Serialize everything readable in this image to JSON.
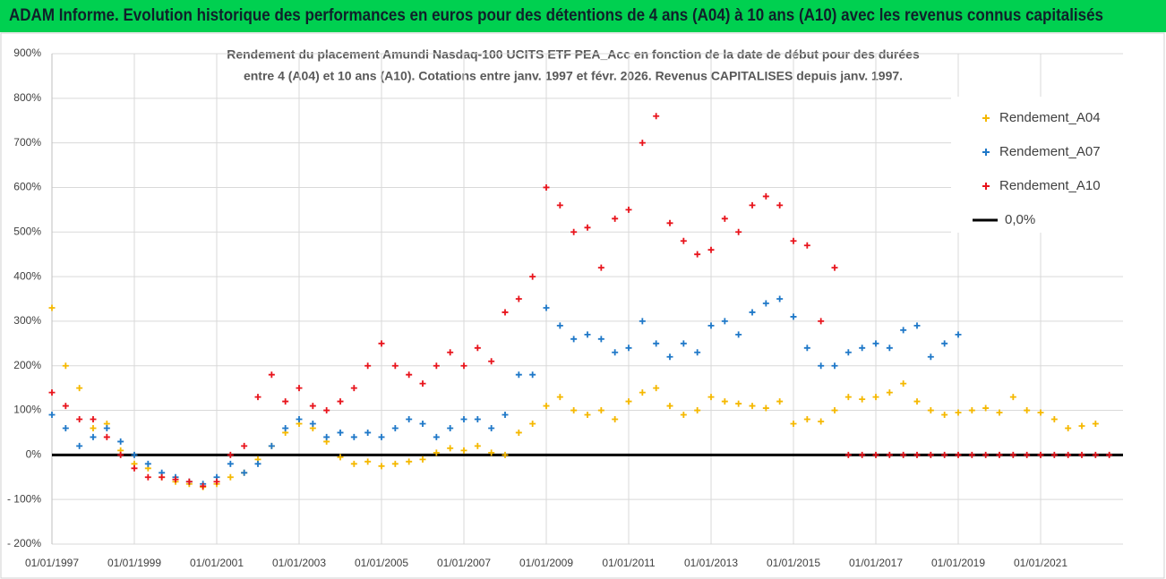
{
  "header": {
    "title": "ADAM Informe. Evolution historique des performances en euros pour des détentions de 4 ans (A04) à 10 ans (A10) avec les revenus connus capitalisés"
  },
  "chart_data": {
    "type": "scatter",
    "subtitle": [
      "Rendement du placement Amundi Nasdaq-100 UCITS ETF PEA_Acc en fonction de la date de début pour des durées",
      "entre 4 (A04) et 10 ans (A10). Cotations entre janv. 1997 et févr. 2026. Revenus CAPITALISES depuis janv. 1997."
    ],
    "x": [
      "01/01/1997",
      "01/05/1997",
      "01/09/1997",
      "01/01/1998",
      "01/05/1998",
      "01/09/1998",
      "01/01/1999",
      "01/05/1999",
      "01/09/1999",
      "01/01/2000",
      "01/05/2000",
      "01/09/2000",
      "01/01/2001",
      "01/05/2001",
      "01/09/2001",
      "01/01/2002",
      "01/05/2002",
      "01/09/2002",
      "01/01/2003",
      "01/05/2003",
      "01/09/2003",
      "01/01/2004",
      "01/05/2004",
      "01/09/2004",
      "01/01/2005",
      "01/05/2005",
      "01/09/2005",
      "01/01/2006",
      "01/05/2006",
      "01/09/2006",
      "01/01/2007",
      "01/05/2007",
      "01/09/2007",
      "01/01/2008",
      "01/05/2008",
      "01/09/2008",
      "01/01/2009",
      "01/05/2009",
      "01/09/2009",
      "01/01/2010",
      "01/05/2010",
      "01/09/2010",
      "01/01/2011",
      "01/05/2011",
      "01/09/2011",
      "01/01/2012",
      "01/05/2012",
      "01/09/2012",
      "01/01/2013",
      "01/05/2013",
      "01/09/2013",
      "01/01/2014",
      "01/05/2014",
      "01/09/2014",
      "01/01/2015",
      "01/05/2015",
      "01/09/2015",
      "01/01/2016",
      "01/05/2016",
      "01/09/2016",
      "01/01/2017",
      "01/05/2017",
      "01/09/2017",
      "01/01/2018",
      "01/05/2018",
      "01/09/2018",
      "01/01/2019",
      "01/05/2019",
      "01/09/2019",
      "01/01/2020",
      "01/05/2020",
      "01/09/2020",
      "01/01/2021",
      "01/05/2021",
      "01/09/2021",
      "01/01/2022",
      "01/05/2022",
      "01/09/2022"
    ],
    "series": [
      {
        "name": "Rendement_A04",
        "color": "#f5b800",
        "values": [
          330,
          200,
          150,
          60,
          70,
          10,
          -20,
          -30,
          -50,
          -60,
          -65,
          -72,
          -65,
          -50,
          -40,
          -10,
          20,
          50,
          70,
          60,
          30,
          -5,
          -20,
          -15,
          -25,
          -20,
          -15,
          -10,
          5,
          15,
          10,
          20,
          5,
          0,
          50,
          70,
          110,
          130,
          100,
          90,
          100,
          80,
          120,
          140,
          150,
          110,
          90,
          100,
          130,
          120,
          115,
          110,
          105,
          120,
          70,
          80,
          75,
          100,
          130,
          125,
          130,
          140,
          160,
          120,
          100,
          90,
          95,
          100,
          105,
          95,
          130,
          100,
          95,
          80,
          60,
          65,
          70,
          null
        ]
      },
      {
        "name": "Rendement_A07",
        "color": "#1f78c8",
        "values": [
          90,
          60,
          20,
          40,
          60,
          30,
          0,
          -20,
          -40,
          -50,
          -60,
          -65,
          -50,
          -20,
          -40,
          -20,
          20,
          60,
          80,
          70,
          40,
          50,
          40,
          50,
          40,
          60,
          80,
          70,
          40,
          60,
          80,
          80,
          60,
          90,
          180,
          180,
          330,
          290,
          260,
          270,
          260,
          230,
          240,
          300,
          250,
          220,
          250,
          230,
          290,
          300,
          270,
          320,
          340,
          350,
          310,
          240,
          200,
          200,
          230,
          240,
          250,
          240,
          280,
          290,
          220,
          250,
          270,
          null,
          null,
          null,
          null,
          null,
          null,
          null,
          null,
          null,
          null,
          null
        ]
      },
      {
        "name": "Rendement_A10",
        "color": "#e8141c",
        "values": [
          140,
          110,
          80,
          80,
          40,
          0,
          -30,
          -50,
          -50,
          -55,
          -60,
          -70,
          -60,
          0,
          20,
          130,
          180,
          120,
          150,
          110,
          100,
          120,
          150,
          200,
          250,
          200,
          180,
          160,
          200,
          230,
          200,
          240,
          210,
          320,
          350,
          400,
          600,
          560,
          500,
          510,
          420,
          530,
          550,
          700,
          760,
          520,
          480,
          450,
          460,
          530,
          500,
          560,
          580,
          560,
          480,
          470,
          300,
          420,
          0,
          0,
          0,
          0,
          0,
          0,
          0,
          0,
          0,
          0,
          0,
          0,
          0,
          0,
          0,
          0,
          0,
          0,
          0,
          0
        ]
      }
    ],
    "reference_line": {
      "name": "0,0%",
      "value": 0,
      "color": "#000000"
    },
    "xlim": [
      "01/01/1997",
      "01/01/2023"
    ],
    "xticks": [
      "01/01/1997",
      "01/01/1999",
      "01/01/2001",
      "01/01/2003",
      "01/01/2005",
      "01/01/2007",
      "01/01/2009",
      "01/01/2011",
      "01/01/2013",
      "01/01/2015",
      "01/01/2017",
      "01/01/2019",
      "01/01/2021"
    ],
    "ylim": [
      -200,
      900
    ],
    "yticks": [
      {
        "value": -200,
        "label": "- 200%"
      },
      {
        "value": -100,
        "label": "- 100%"
      },
      {
        "value": 0,
        "label": "0%"
      },
      {
        "value": 100,
        "label": "100%"
      },
      {
        "value": 200,
        "label": "200%"
      },
      {
        "value": 300,
        "label": "300%"
      },
      {
        "value": 400,
        "label": "400%"
      },
      {
        "value": 500,
        "label": "500%"
      },
      {
        "value": 600,
        "label": "600%"
      },
      {
        "value": 700,
        "label": "700%"
      },
      {
        "value": 800,
        "label": "800%"
      },
      {
        "value": 900,
        "label": "900%"
      }
    ],
    "grid": true,
    "legend": "right"
  }
}
